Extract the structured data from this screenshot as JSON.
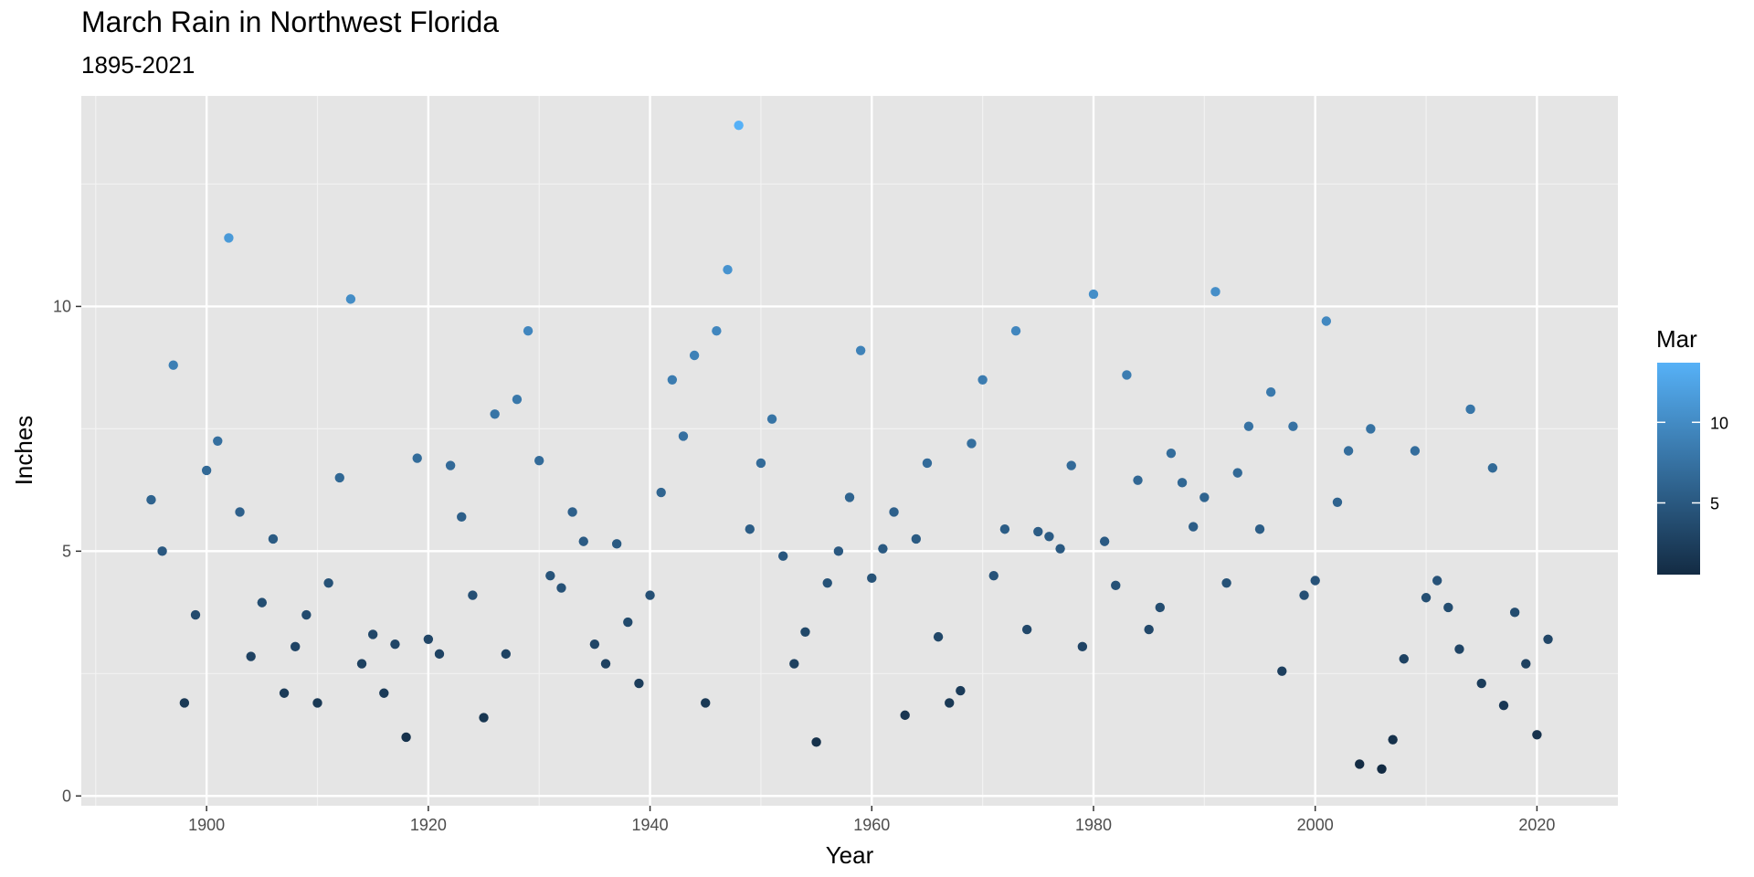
{
  "chart_data": {
    "type": "scatter",
    "title": "March Rain in Northwest Florida",
    "subtitle": "1895-2021",
    "xlabel": "Year",
    "ylabel": "Inches",
    "xlim": [
      1888.7,
      2027.3
    ],
    "ylim": [
      -0.2,
      14.3
    ],
    "x_ticks": [
      1900,
      1920,
      1940,
      1960,
      1980,
      2000,
      2020
    ],
    "y_ticks": [
      0,
      5,
      10
    ],
    "grid": true,
    "legend": {
      "title": "Mar",
      "position": "right",
      "type": "colorbar",
      "ticks": [
        5,
        10
      ],
      "low_color": "#132B43",
      "high_color": "#56B1F7",
      "range": [
        0.55,
        13.7
      ]
    },
    "colors": {
      "panel_background": "#e5e5e5",
      "grid": "#ffffff",
      "point_low": "#132B43",
      "point_high": "#56B1F7"
    },
    "points": [
      [
        1895,
        6.05
      ],
      [
        1896,
        5.0
      ],
      [
        1897,
        8.8
      ],
      [
        1898,
        1.9
      ],
      [
        1899,
        3.7
      ],
      [
        1900,
        6.65
      ],
      [
        1901,
        7.25
      ],
      [
        1902,
        11.4
      ],
      [
        1903,
        5.8
      ],
      [
        1904,
        2.85
      ],
      [
        1905,
        3.95
      ],
      [
        1906,
        5.25
      ],
      [
        1907,
        2.1
      ],
      [
        1908,
        3.05
      ],
      [
        1909,
        3.7
      ],
      [
        1910,
        1.9
      ],
      [
        1911,
        4.35
      ],
      [
        1912,
        6.5
      ],
      [
        1913,
        10.15
      ],
      [
        1914,
        2.7
      ],
      [
        1915,
        3.3
      ],
      [
        1916,
        2.1
      ],
      [
        1917,
        3.1
      ],
      [
        1918,
        1.2
      ],
      [
        1919,
        6.9
      ],
      [
        1920,
        3.2
      ],
      [
        1921,
        2.9
      ],
      [
        1922,
        6.75
      ],
      [
        1923,
        5.7
      ],
      [
        1924,
        4.1
      ],
      [
        1925,
        1.6
      ],
      [
        1926,
        7.8
      ],
      [
        1927,
        2.9
      ],
      [
        1928,
        8.1
      ],
      [
        1929,
        9.5
      ],
      [
        1930,
        6.85
      ],
      [
        1931,
        4.5
      ],
      [
        1932,
        4.25
      ],
      [
        1933,
        5.8
      ],
      [
        1934,
        5.2
      ],
      [
        1935,
        3.1
      ],
      [
        1936,
        2.7
      ],
      [
        1937,
        5.15
      ],
      [
        1938,
        3.55
      ],
      [
        1939,
        2.3
      ],
      [
        1940,
        4.1
      ],
      [
        1941,
        6.2
      ],
      [
        1942,
        8.5
      ],
      [
        1943,
        7.35
      ],
      [
        1944,
        9.0
      ],
      [
        1945,
        1.9
      ],
      [
        1946,
        9.5
      ],
      [
        1947,
        10.75
      ],
      [
        1948,
        13.7
      ],
      [
        1949,
        5.45
      ],
      [
        1950,
        6.8
      ],
      [
        1951,
        7.7
      ],
      [
        1952,
        4.9
      ],
      [
        1953,
        2.7
      ],
      [
        1954,
        3.35
      ],
      [
        1955,
        1.1
      ],
      [
        1956,
        4.35
      ],
      [
        1957,
        5.0
      ],
      [
        1958,
        6.1
      ],
      [
        1959,
        9.1
      ],
      [
        1960,
        4.45
      ],
      [
        1961,
        5.05
      ],
      [
        1962,
        5.8
      ],
      [
        1963,
        1.65
      ],
      [
        1964,
        5.25
      ],
      [
        1965,
        6.8
      ],
      [
        1966,
        3.25
      ],
      [
        1967,
        1.9
      ],
      [
        1968,
        2.15
      ],
      [
        1969,
        7.2
      ],
      [
        1970,
        8.5
      ],
      [
        1971,
        4.5
      ],
      [
        1972,
        5.45
      ],
      [
        1973,
        9.5
      ],
      [
        1974,
        3.4
      ],
      [
        1975,
        5.4
      ],
      [
        1976,
        5.3
      ],
      [
        1977,
        5.05
      ],
      [
        1978,
        6.75
      ],
      [
        1979,
        3.05
      ],
      [
        1980,
        10.25
      ],
      [
        1981,
        5.2
      ],
      [
        1982,
        4.3
      ],
      [
        1983,
        8.6
      ],
      [
        1984,
        6.45
      ],
      [
        1985,
        3.4
      ],
      [
        1986,
        3.85
      ],
      [
        1987,
        7.0
      ],
      [
        1988,
        6.4
      ],
      [
        1989,
        5.5
      ],
      [
        1990,
        6.1
      ],
      [
        1991,
        10.3
      ],
      [
        1992,
        4.35
      ],
      [
        1993,
        6.6
      ],
      [
        1994,
        7.55
      ],
      [
        1995,
        5.45
      ],
      [
        1996,
        8.25
      ],
      [
        1997,
        2.55
      ],
      [
        1998,
        7.55
      ],
      [
        1999,
        4.1
      ],
      [
        2000,
        4.4
      ],
      [
        2001,
        9.7
      ],
      [
        2002,
        6.0
      ],
      [
        2003,
        7.05
      ],
      [
        2004,
        0.65
      ],
      [
        2005,
        7.5
      ],
      [
        2006,
        0.55
      ],
      [
        2007,
        1.15
      ],
      [
        2008,
        2.8
      ],
      [
        2009,
        7.05
      ],
      [
        2010,
        4.05
      ],
      [
        2011,
        4.4
      ],
      [
        2012,
        3.85
      ],
      [
        2013,
        3.0
      ],
      [
        2014,
        7.9
      ],
      [
        2015,
        2.3
      ],
      [
        2016,
        6.7
      ],
      [
        2017,
        1.85
      ],
      [
        2018,
        3.75
      ],
      [
        2019,
        2.7
      ],
      [
        2020,
        1.25
      ],
      [
        2021,
        3.2
      ]
    ]
  }
}
